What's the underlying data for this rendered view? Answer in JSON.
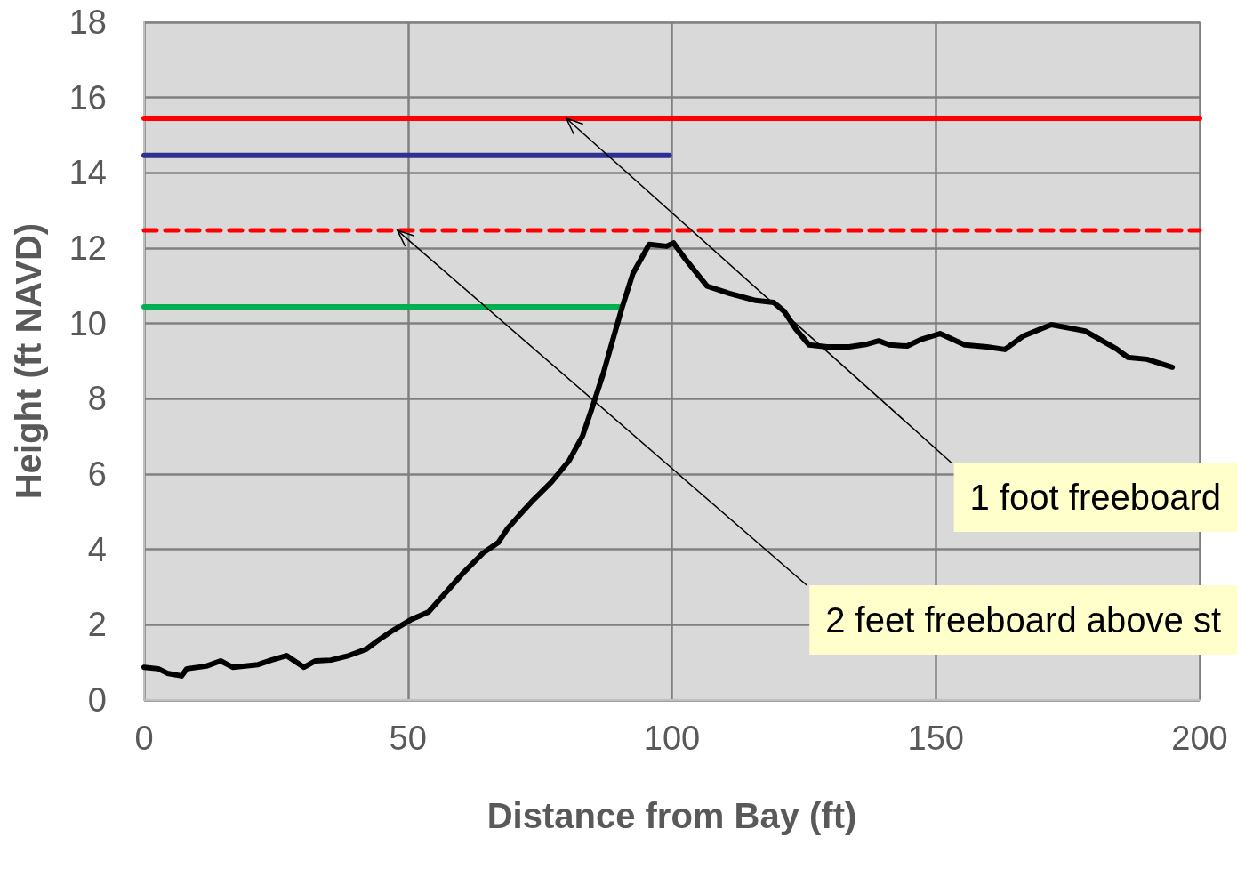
{
  "chart_data": {
    "type": "line",
    "xlabel": "Distance from Bay (ft)",
    "ylabel": "Height (ft NAVD)",
    "xlim": [
      0,
      200
    ],
    "xticks": [
      0,
      50,
      100,
      150,
      200
    ],
    "ylim": [
      0,
      18
    ],
    "yticks": [
      0,
      2,
      4,
      6,
      8,
      10,
      12,
      14,
      16,
      18
    ],
    "grid": true,
    "marker": "none",
    "series": [
      {
        "color": "#ff0000",
        "x": [
          0,
          200
        ],
        "values": [
          15.45,
          15.45
        ]
      },
      {
        "color": "#2e3192",
        "x": [
          0,
          99.5
        ],
        "values": [
          14.46,
          14.46
        ]
      },
      {
        "color": "#ff0000",
        "line_style": "dashed",
        "x": [
          0,
          200
        ],
        "values": [
          12.47,
          12.47
        ]
      },
      {
        "color": "#00b050",
        "x": [
          0,
          90
        ],
        "values": [
          10.44,
          10.44
        ]
      },
      {
        "color": "#000000",
        "x": [
          0,
          2.7,
          4.4,
          7.1,
          8.1,
          11.8,
          14.5,
          16.8,
          21.6,
          24.1,
          27,
          30.3,
          32.5,
          35.4,
          38.8,
          42.1,
          44.3,
          46.8,
          50.5,
          53.9,
          56.9,
          60.3,
          64.2,
          67.1,
          68.8,
          71.3,
          73.8,
          77.2,
          80.5,
          83.1,
          84.8,
          87,
          88.9,
          90.6,
          92.6,
          95.7,
          99,
          100.3,
          102.4,
          106.7,
          110.9,
          115.9,
          119.3,
          121.3,
          123.5,
          126,
          129.4,
          133.6,
          137,
          139.2,
          141.2,
          144.6,
          147.1,
          150.8,
          155.5,
          159.7,
          163.1,
          166.5,
          171.9,
          178.3,
          184.2,
          186.4,
          190,
          194.8
        ],
        "values": [
          0.87,
          0.83,
          0.71,
          0.64,
          0.83,
          0.9,
          1.04,
          0.87,
          0.94,
          1.06,
          1.18,
          0.87,
          1.04,
          1.06,
          1.18,
          1.35,
          1.58,
          1.82,
          2.13,
          2.34,
          2.81,
          3.35,
          3.9,
          4.18,
          4.54,
          4.94,
          5.32,
          5.79,
          6.35,
          7.02,
          7.72,
          8.67,
          9.61,
          10.44,
          11.32,
          12.1,
          12.05,
          12.14,
          11.74,
          10.99,
          10.8,
          10.61,
          10.56,
          10.32,
          9.85,
          9.43,
          9.38,
          9.38,
          9.45,
          9.54,
          9.43,
          9.4,
          9.57,
          9.73,
          9.43,
          9.38,
          9.31,
          9.66,
          9.97,
          9.8,
          9.33,
          9.1,
          9.05,
          8.84
        ]
      }
    ],
    "annotations": [
      {
        "text": "1 foot freeboard",
        "x": 80,
        "y": 15.45
      },
      {
        "text": "2 feet freeboard above st",
        "x": 48,
        "y": 12.47
      }
    ]
  }
}
